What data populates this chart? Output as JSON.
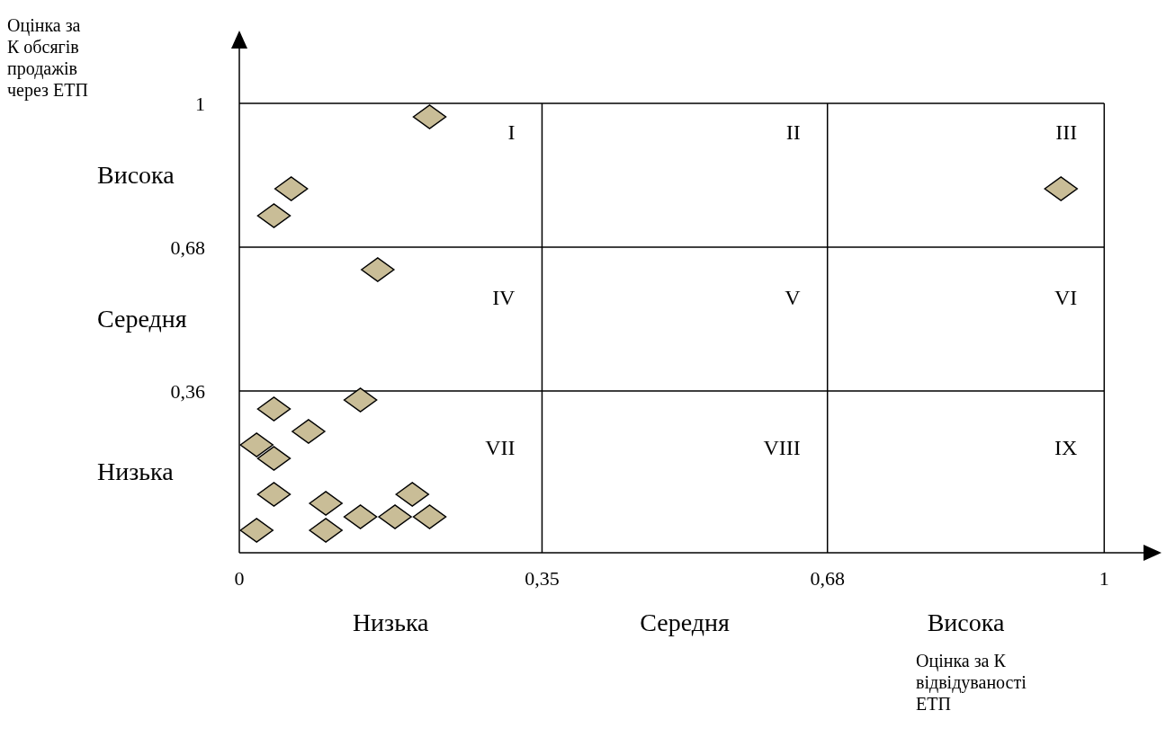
{
  "chart_data": {
    "type": "scatter",
    "xlabel": "Оцінка за К відвідуваності ЕТП",
    "ylabel": "Оцінка за К обсягів продажів через ЕТП",
    "x": [
      0.22,
      0.06,
      0.04,
      0.95,
      0.16,
      0.04,
      0.14,
      0.08,
      0.02,
      0.04,
      0.04,
      0.2,
      0.1,
      0.14,
      0.18,
      0.22,
      0.02,
      0.1
    ],
    "series": [
      {
        "color": "#c9bd97",
        "values": [
          0.97,
          0.81,
          0.75,
          0.81,
          0.63,
          0.32,
          0.34,
          0.27,
          0.24,
          0.21,
          0.13,
          0.13,
          0.11,
          0.08,
          0.08,
          0.08,
          0.05,
          0.05
        ]
      }
    ],
    "xlim": [
      0,
      1.06
    ],
    "ylim": [
      0,
      1.15
    ],
    "xticks": [
      0,
      {
        "value": 0.35,
        "label": "0,35"
      },
      {
        "value": 0.68,
        "label": "0,68"
      },
      1
    ],
    "yticks": [
      {
        "value": 0,
        "label": null
      },
      {
        "value": 0.36,
        "label": "0,36"
      },
      {
        "value": 0.68,
        "label": "0,68"
      },
      1
    ],
    "grid": true,
    "marker": "diamond",
    "annotations": [
      "I",
      "II",
      "III",
      "IV",
      "V",
      "VI",
      "VII",
      "VIII",
      "IX",
      "Низька",
      "Середня",
      "Висока",
      "Висока",
      "Середня",
      "Низька"
    ]
  }
}
